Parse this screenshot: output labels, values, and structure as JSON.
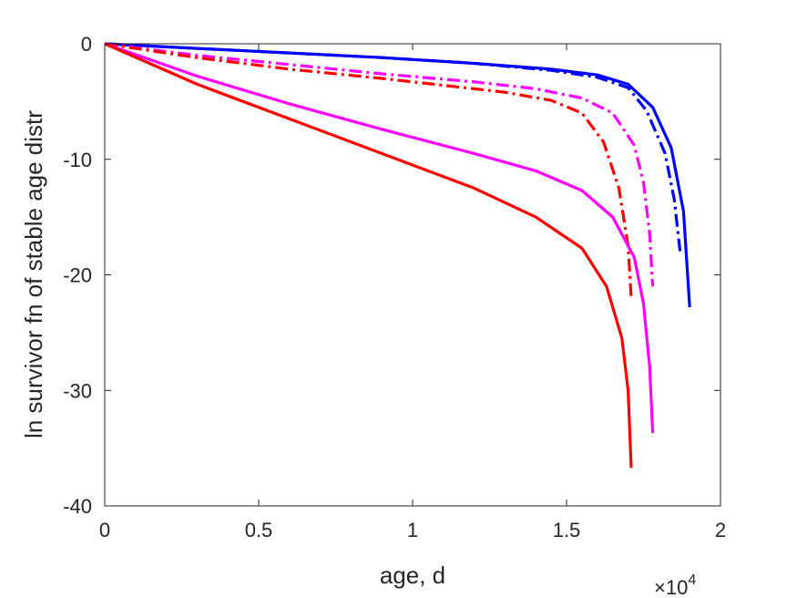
{
  "chart_data": {
    "type": "line",
    "xlabel": "age, d",
    "ylabel": "ln survivor fn of stable age distr",
    "x_multiplier": "×10",
    "x_multiplier_exp": "4",
    "xlim": [
      0,
      20000
    ],
    "ylim": [
      -40,
      0
    ],
    "xticks": [
      0,
      5000,
      10000,
      15000,
      20000
    ],
    "xtick_labels": [
      "0",
      "0.5",
      "1",
      "1.5",
      "2"
    ],
    "yticks": [
      0,
      -10,
      -20,
      -30,
      -40
    ],
    "ytick_labels": [
      "0",
      "-10",
      "-20",
      "-30",
      "-40"
    ],
    "grid": false,
    "legend": "none",
    "series": [
      {
        "color": "#0000ff",
        "style": "solid",
        "x": [
          0,
          3000,
          6000,
          9000,
          12000,
          14500,
          16000,
          17000,
          17800,
          18400,
          18800,
          19000
        ],
        "y": [
          0,
          -0.4,
          -0.8,
          -1.2,
          -1.7,
          -2.2,
          -2.7,
          -3.5,
          -5.5,
          -9.0,
          -14.5,
          -22.8
        ]
      },
      {
        "color": "#0000ff",
        "style": "dashdot",
        "x": [
          0,
          3000,
          6000,
          9000,
          12000,
          14500,
          16000,
          17000,
          17600,
          18200,
          18500,
          18700
        ],
        "y": [
          0,
          -0.4,
          -0.8,
          -1.2,
          -1.7,
          -2.3,
          -2.9,
          -3.8,
          -5.8,
          -9.5,
          -13.5,
          -18.3
        ]
      },
      {
        "color": "#ff00ff",
        "style": "dashdot",
        "x": [
          0,
          3000,
          6000,
          9000,
          12000,
          14000,
          15500,
          16500,
          17200,
          17500,
          17700,
          17800
        ],
        "y": [
          0,
          -1.0,
          -1.8,
          -2.6,
          -3.3,
          -3.9,
          -4.7,
          -6.0,
          -8.8,
          -12.0,
          -16.5,
          -21.0
        ]
      },
      {
        "color": "#ff0000",
        "style": "dashdot",
        "x": [
          0,
          3000,
          6000,
          9000,
          11000,
          13000,
          14500,
          15500,
          16200,
          16700,
          17000,
          17100
        ],
        "y": [
          0,
          -1.2,
          -2.2,
          -3.0,
          -3.6,
          -4.2,
          -4.9,
          -6.0,
          -8.5,
          -12.5,
          -17.5,
          -22.0
        ]
      },
      {
        "color": "#ff00ff",
        "style": "solid",
        "x": [
          0,
          3000,
          6000,
          9000,
          12000,
          14000,
          15500,
          16500,
          17200,
          17500,
          17700,
          17800
        ],
        "y": [
          0,
          -2.8,
          -5.2,
          -7.4,
          -9.5,
          -11.0,
          -12.7,
          -15.0,
          -18.5,
          -22.5,
          -28.0,
          -33.7
        ]
      },
      {
        "color": "#ff0000",
        "style": "solid",
        "x": [
          0,
          3000,
          6000,
          9000,
          12000,
          14000,
          15500,
          16300,
          16800,
          17000,
          17100
        ],
        "y": [
          0,
          -3.5,
          -6.5,
          -9.5,
          -12.5,
          -15.0,
          -17.7,
          -21.0,
          -25.5,
          -30.0,
          -36.7
        ]
      }
    ]
  }
}
